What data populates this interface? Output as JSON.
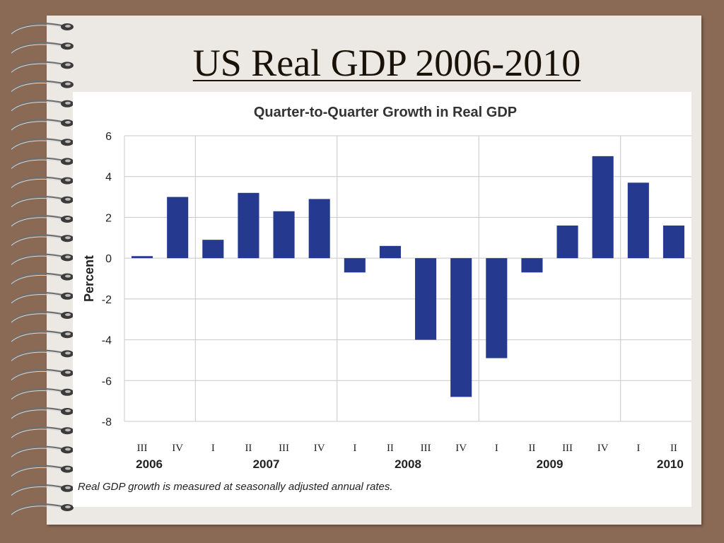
{
  "slide": {
    "title": "US Real GDP 2006-2010"
  },
  "chart_data": {
    "type": "bar",
    "title": "Quarter-to-Quarter Growth in Real GDP",
    "ylabel": "Percent",
    "xlabel": "",
    "ylim": [
      -8,
      6
    ],
    "yticks": [
      6,
      4,
      2,
      0,
      -2,
      -4,
      -6,
      -8
    ],
    "grid": true,
    "bar_color": "#25398f",
    "categories": [
      "III",
      "IV",
      "I",
      "II",
      "III",
      "IV",
      "I",
      "II",
      "III",
      "IV",
      "I",
      "II",
      "III",
      "IV",
      "I",
      "II"
    ],
    "years": [
      {
        "label": "2006",
        "start": 0,
        "count": 2
      },
      {
        "label": "2007",
        "start": 2,
        "count": 4
      },
      {
        "label": "2008",
        "start": 6,
        "count": 4
      },
      {
        "label": "2009",
        "start": 10,
        "count": 4
      },
      {
        "label": "2010",
        "start": 14,
        "count": 2
      }
    ],
    "values": [
      0.1,
      3.0,
      0.9,
      3.2,
      2.3,
      2.9,
      -0.7,
      0.6,
      -4.0,
      -6.8,
      -4.9,
      -0.7,
      1.6,
      5.0,
      3.7,
      1.6
    ],
    "footnote": "Real GDP growth is measured at seasonally adjusted annual rates."
  }
}
